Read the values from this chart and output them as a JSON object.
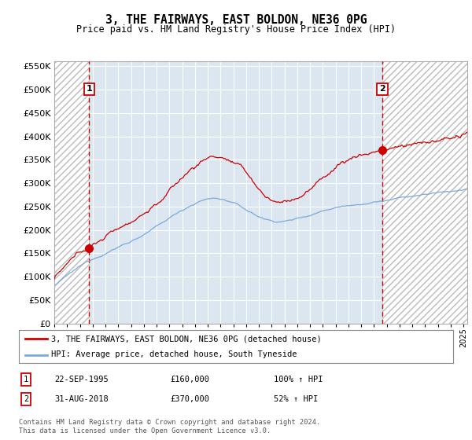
{
  "title": "3, THE FAIRWAYS, EAST BOLDON, NE36 0PG",
  "subtitle": "Price paid vs. HM Land Registry's House Price Index (HPI)",
  "legend_line1": "3, THE FAIRWAYS, EAST BOLDON, NE36 0PG (detached house)",
  "legend_line2": "HPI: Average price, detached house, South Tyneside",
  "footnote": "Contains HM Land Registry data © Crown copyright and database right 2024.\nThis data is licensed under the Open Government Licence v3.0.",
  "sale1_date_label": "22-SEP-1995",
  "sale1_price": 160000,
  "sale1_pct": "100% ↑ HPI",
  "sale2_date_label": "31-AUG-2018",
  "sale2_price": 370000,
  "sale2_pct": "52% ↑ HPI",
  "sale1_year": 1995.72,
  "sale2_year": 2018.66,
  "ylim": [
    0,
    560000
  ],
  "xlim_start": 1993.0,
  "xlim_end": 2025.3,
  "red_color": "#cc0000",
  "blue_color": "#7aaadd",
  "plot_bg": "#dce6f1"
}
